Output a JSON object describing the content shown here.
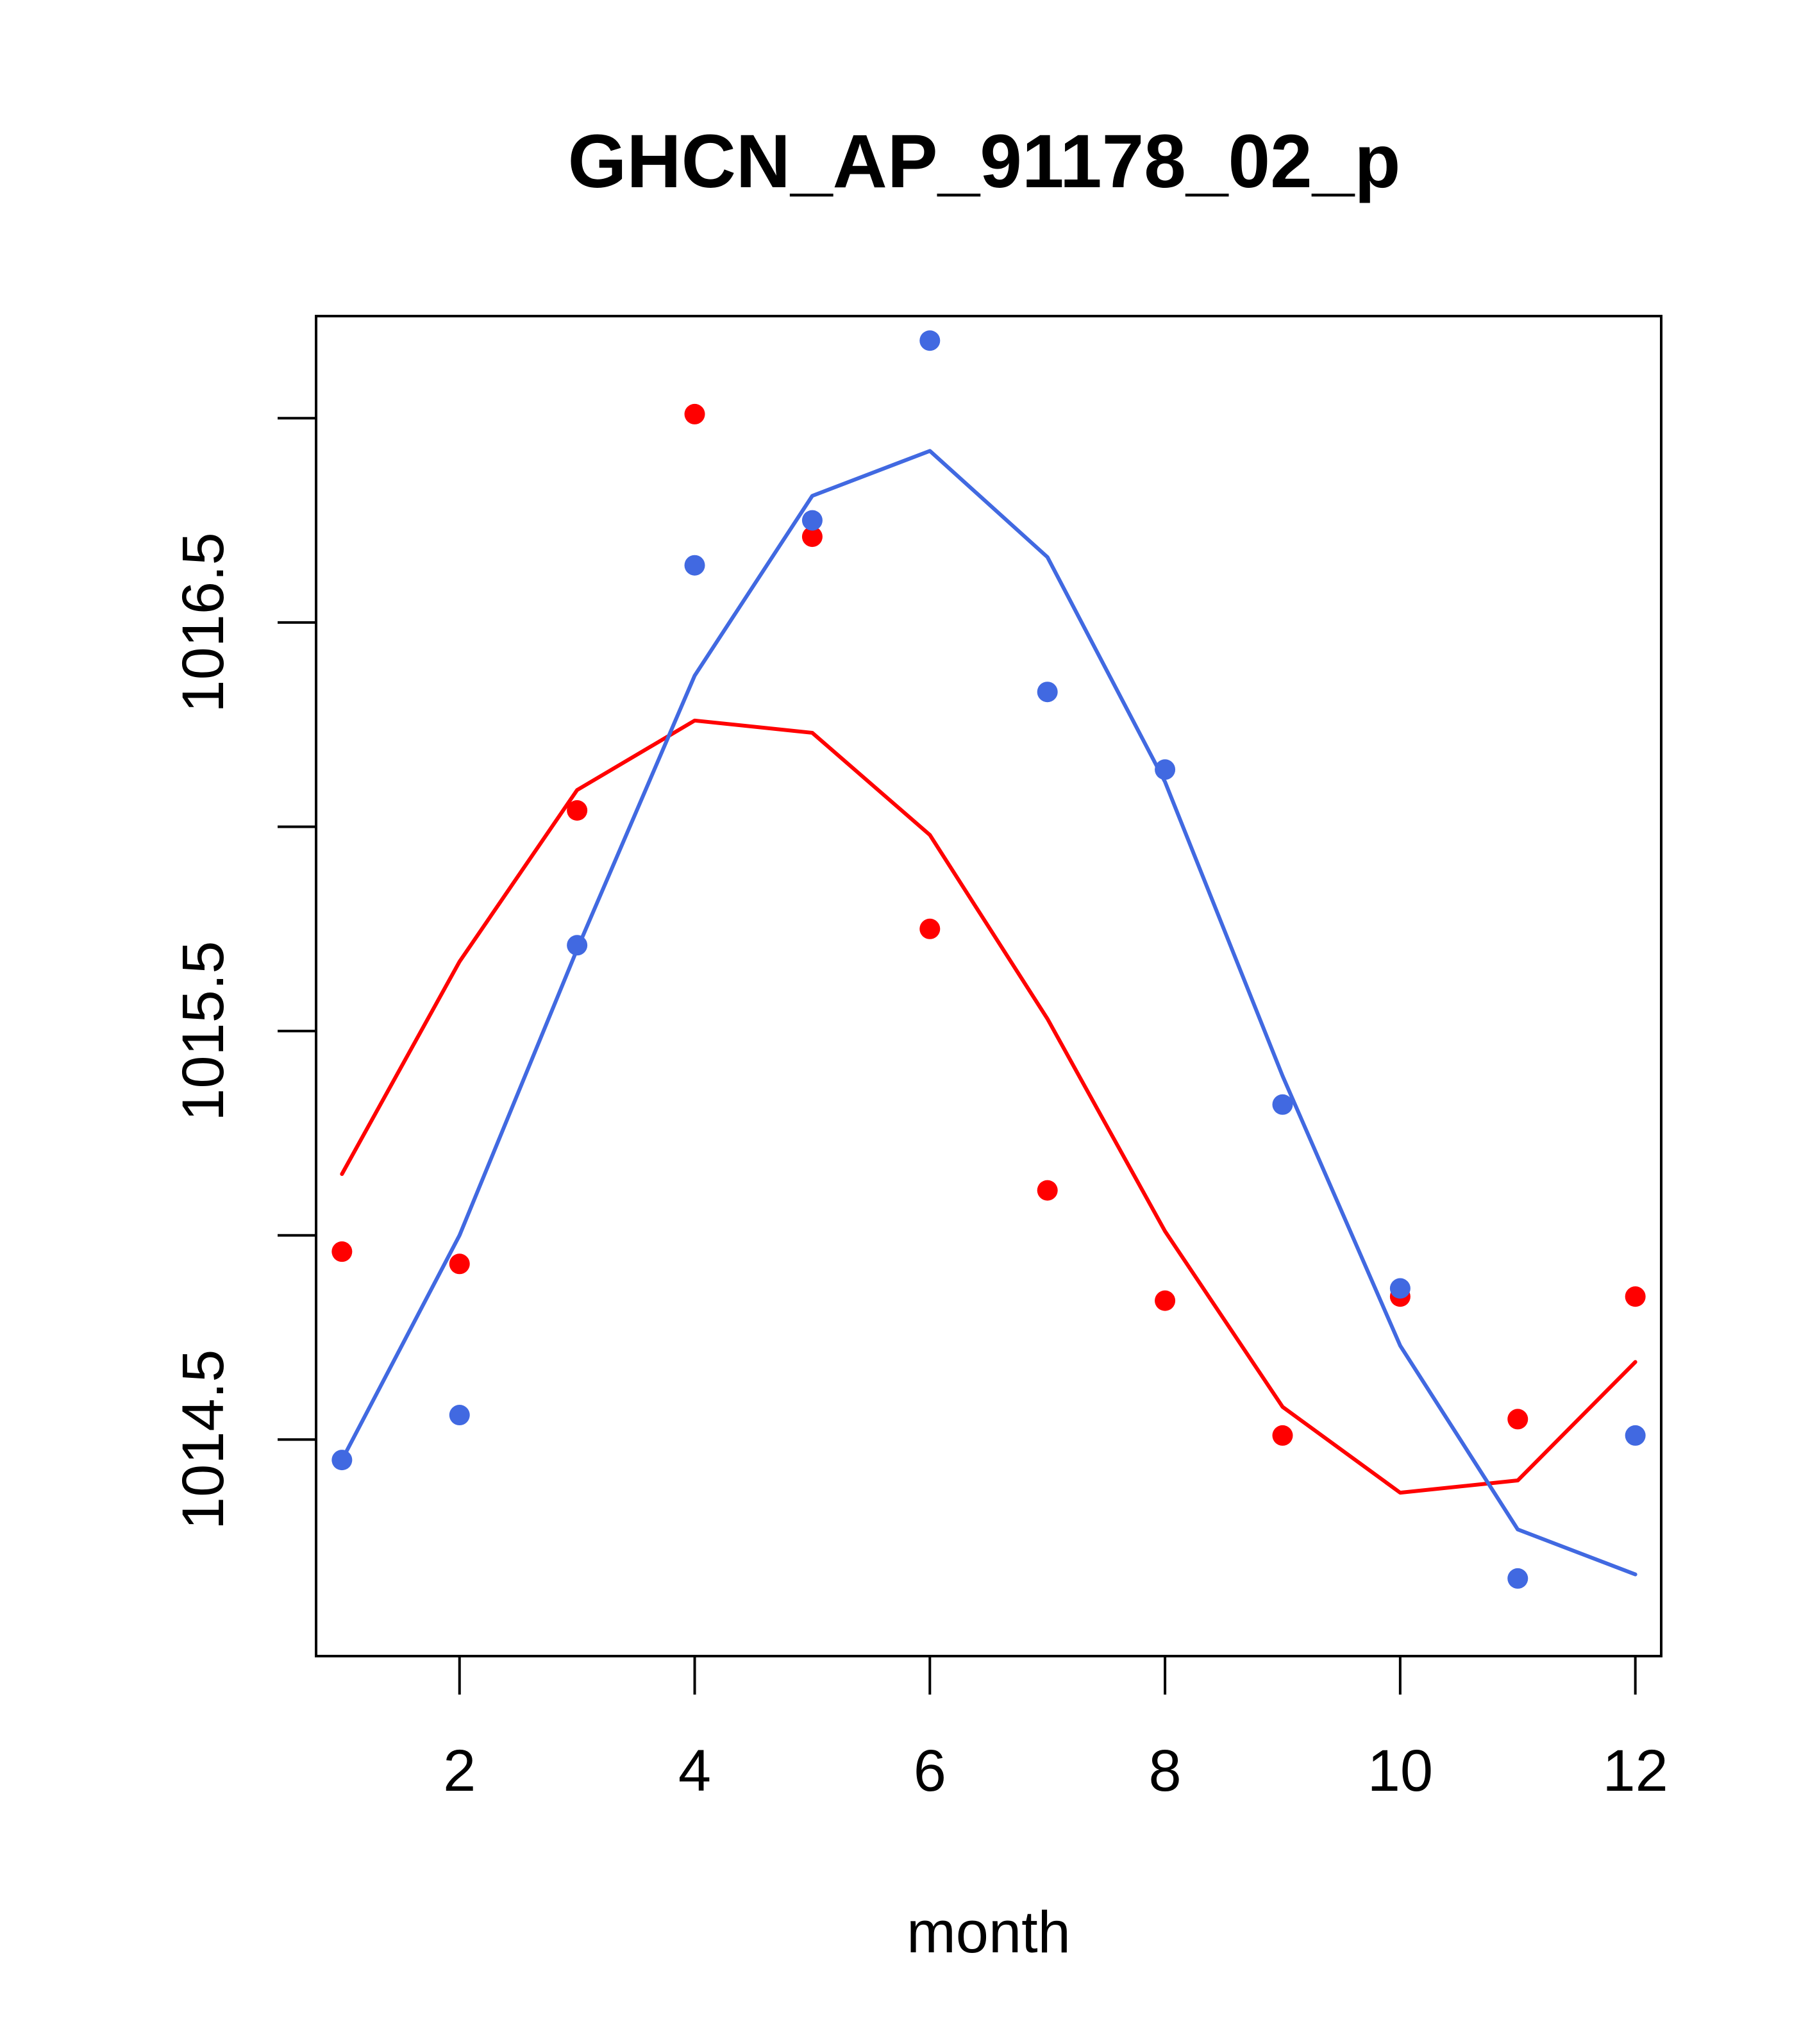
{
  "chart_data": {
    "type": "scatter",
    "title": "GHCN_AP_91178_02_p",
    "xlabel": "month",
    "ylabel": "",
    "xlim": [
      0.78,
      12.22
    ],
    "ylim": [
      1013.97,
      1017.25
    ],
    "x_ticks": [
      2,
      4,
      6,
      8,
      10,
      12
    ],
    "x_tick_labels": [
      "2",
      "4",
      "6",
      "8",
      "10",
      "12"
    ],
    "y_ticks": [
      1014.5,
      1015.0,
      1015.5,
      1016.0,
      1016.5,
      1017.0
    ],
    "y_tick_labels": [
      "1014.5",
      "",
      "1015.5",
      "",
      "1016.5",
      ""
    ],
    "x": [
      1,
      2,
      3,
      4,
      5,
      6,
      7,
      8,
      9,
      10,
      11,
      12
    ],
    "series": [
      {
        "name": "red points",
        "kind": "points",
        "color": "#ff0000",
        "values": [
          1014.96,
          1014.93,
          1016.04,
          1017.01,
          1016.71,
          1015.75,
          1015.11,
          1014.84,
          1014.51,
          1014.85,
          1014.55,
          1014.85
        ]
      },
      {
        "name": "red fit",
        "kind": "line",
        "color": "#ff0000",
        "values": [
          1015.15,
          1015.67,
          1016.09,
          1016.26,
          1016.23,
          1015.98,
          1015.53,
          1015.01,
          1014.58,
          1014.37,
          1014.4,
          1014.69
        ]
      },
      {
        "name": "blue points",
        "kind": "points",
        "color": "#4169e1",
        "values": [
          1014.45,
          1014.56,
          1015.71,
          1016.64,
          1016.75,
          1017.19,
          1016.33,
          1016.14,
          1015.32,
          1014.87,
          1014.16,
          1014.51
        ]
      },
      {
        "name": "blue fit",
        "kind": "line",
        "color": "#4169e1",
        "values": [
          1014.45,
          1015.0,
          1015.7,
          1016.37,
          1016.81,
          1016.92,
          1016.66,
          1016.11,
          1015.39,
          1014.73,
          1014.28,
          1014.17
        ]
      }
    ]
  }
}
